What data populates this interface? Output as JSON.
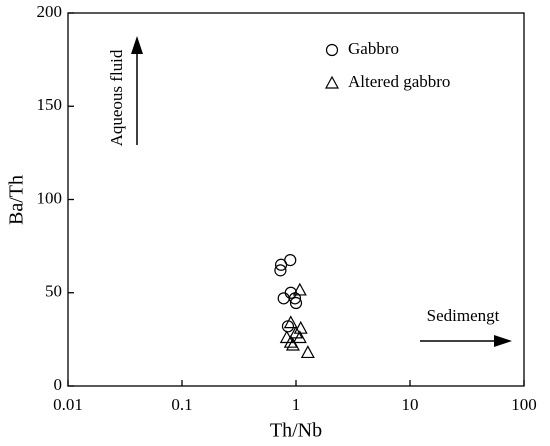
{
  "chart_data": {
    "type": "scatter",
    "xlabel": "Th/Nb",
    "ylabel": "Ba/Th",
    "xscale": "log",
    "xlim": [
      0.01,
      100
    ],
    "xticks": [
      0.01,
      0.1,
      1,
      10,
      100
    ],
    "ylim": [
      0,
      200
    ],
    "yticks": [
      0,
      50,
      100,
      150,
      200
    ],
    "legend": "upper right",
    "series": [
      {
        "name": "Gabbro",
        "color": "#000000",
        "marker": "circle",
        "x": [
          0.89,
          0.74,
          0.73,
          0.9,
          0.78,
          0.98,
          1.0,
          0.85
        ],
        "values": [
          67.5,
          65,
          62,
          50,
          47,
          47,
          44.5,
          32
        ]
      },
      {
        "name": "Altered gabbro",
        "color": "#000000",
        "marker": "triangle",
        "x": [
          1.08,
          0.9,
          1.1,
          1.0,
          0.83,
          1.08,
          0.9,
          1.27,
          0.94
        ],
        "values": [
          51.5,
          34,
          31,
          28.5,
          26,
          26,
          23.5,
          18,
          22
        ]
      }
    ],
    "annotations": [
      "Aqueous fluid",
      "Sedimengt"
    ]
  }
}
